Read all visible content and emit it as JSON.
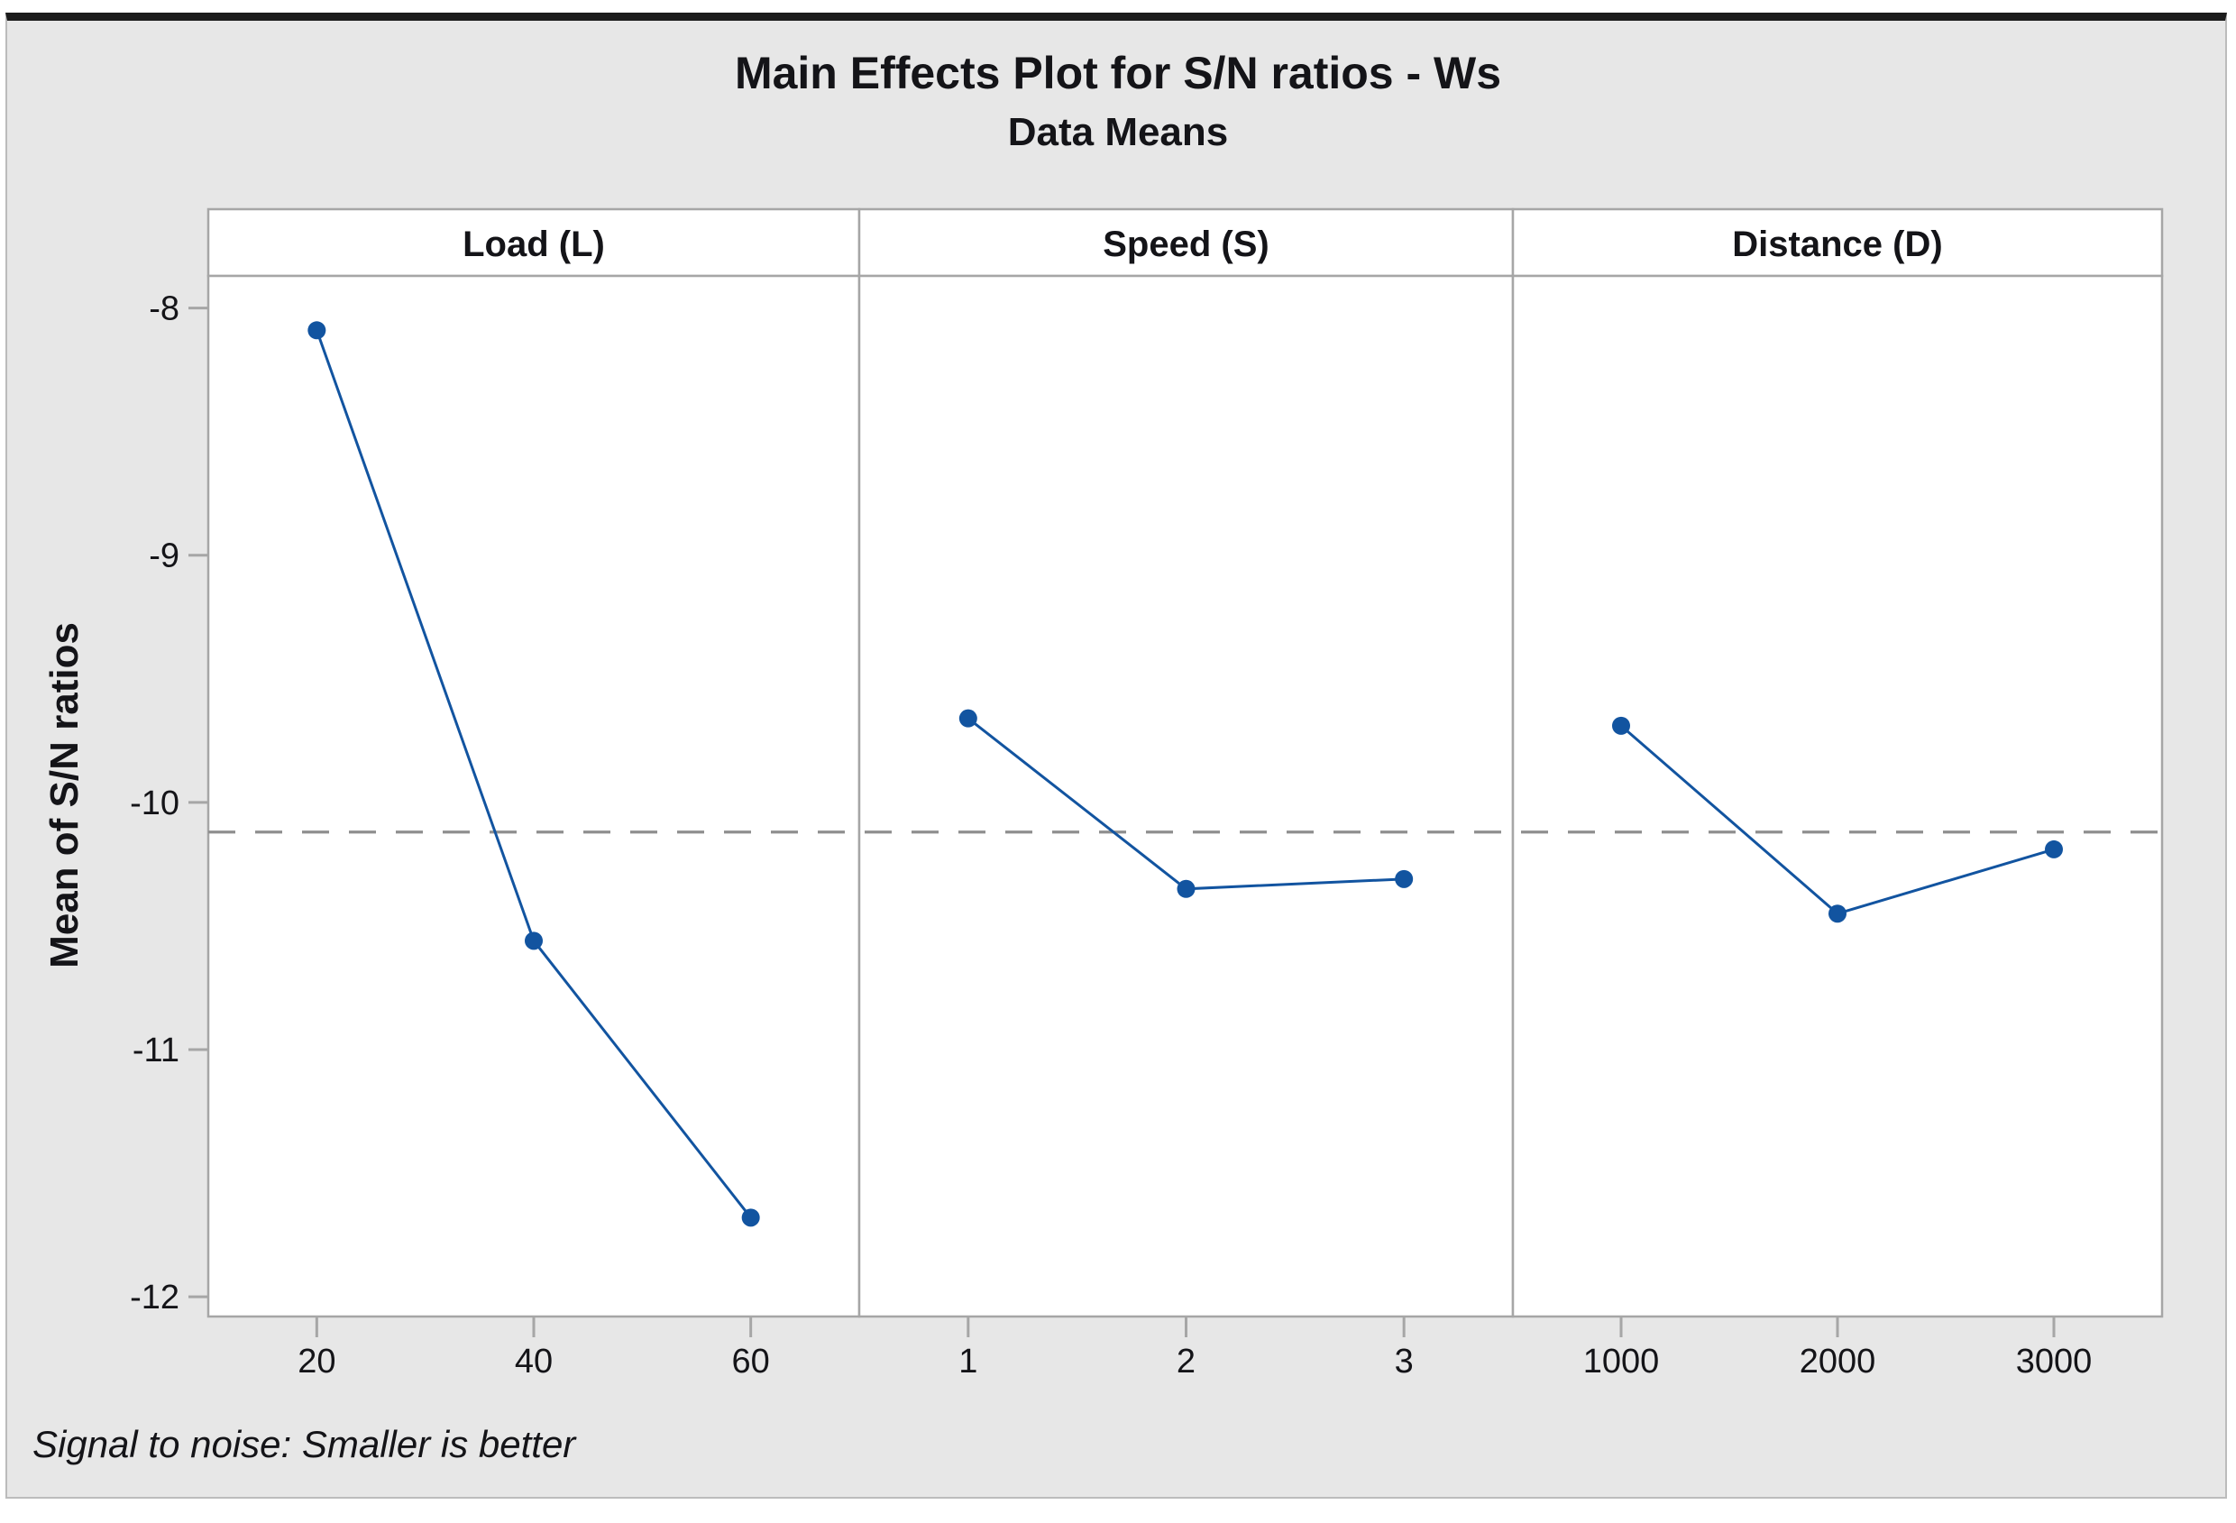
{
  "window": {
    "kind": "minitab-graph-window"
  },
  "chart_data": {
    "type": "line",
    "title": "Main Effects Plot for S/N ratios - Ws",
    "subtitle": "Data Means",
    "ylabel": "Mean of S/N ratios",
    "ylim": [
      -12.08,
      -7.87
    ],
    "yticks": [
      -8,
      -9,
      -10,
      -11,
      -12
    ],
    "ytick_labels": [
      "-8",
      "-9",
      "-10",
      "-11",
      "-12"
    ],
    "grid": false,
    "legend": "none",
    "reference_line": -10.12,
    "footnote": "Signal to noise: Smaller is better",
    "panels": [
      {
        "header": "Load (L)",
        "categories": [
          "20",
          "40",
          "60"
        ],
        "values": [
          -8.09,
          -10.56,
          -11.68
        ]
      },
      {
        "header": "Speed (S)",
        "categories": [
          "1",
          "2",
          "3"
        ],
        "values": [
          -9.66,
          -10.35,
          -10.31
        ]
      },
      {
        "header": "Distance (D)",
        "categories": [
          "1000",
          "2000",
          "3000"
        ],
        "values": [
          -9.69,
          -10.45,
          -10.19
        ]
      }
    ]
  },
  "colors": {
    "series": "#1254a0",
    "reference_line": "#8f8f8f",
    "panel_border": "#a6a6a6",
    "figure_bg": "#e7e7e7",
    "panel_bg": "#ffffff",
    "text": "#141418"
  }
}
